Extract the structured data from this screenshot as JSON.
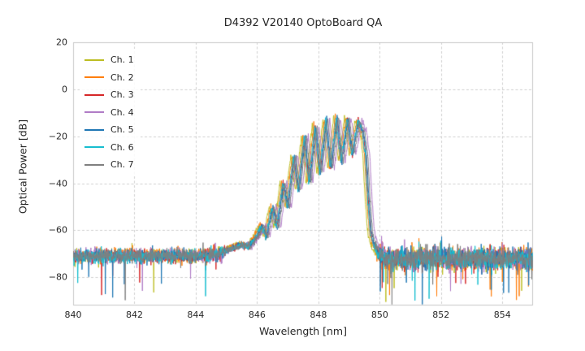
{
  "chart_data": {
    "type": "line",
    "title": "D4392 V20140 OptoBoard QA",
    "xlabel": "Wavelength [nm]",
    "ylabel": "Optical Power [dB]",
    "xlim": [
      840,
      855
    ],
    "ylim": [
      -92,
      20
    ],
    "xticks": [
      840,
      842,
      844,
      846,
      848,
      850,
      852,
      854
    ],
    "xtick_labels": [
      "840",
      "842",
      "844",
      "846",
      "848",
      "850",
      "852",
      "854"
    ],
    "yticks": [
      20,
      0,
      -20,
      -40,
      -60,
      -80
    ],
    "ytick_labels": [
      "20",
      "0",
      "−20",
      "−40",
      "−60",
      "−80"
    ],
    "grid": true,
    "grid_color": "#cfcfcf",
    "spine_color": "#c8c8c8",
    "legend_position": "upper left",
    "noise_floor_db": -71,
    "series": [
      {
        "name": "Ch. 1",
        "color": "#bcbd22",
        "x_shift": -0.1,
        "y_shift": 0.0
      },
      {
        "name": "Ch. 2",
        "color": "#ff7f0e",
        "x_shift": -0.05,
        "y_shift": 0.3
      },
      {
        "name": "Ch. 3",
        "color": "#d62728",
        "x_shift": 0.0,
        "y_shift": -0.3
      },
      {
        "name": "Ch. 4",
        "color": "#b07cc6",
        "x_shift": 0.12,
        "y_shift": 0.2
      },
      {
        "name": "Ch. 5",
        "color": "#1f77b4",
        "x_shift": 0.02,
        "y_shift": 0.0
      },
      {
        "name": "Ch. 6",
        "color": "#17becf",
        "x_shift": -0.02,
        "y_shift": -0.2
      },
      {
        "name": "Ch. 7",
        "color": "#7f7f7f",
        "x_shift": 0.06,
        "y_shift": 0.0
      }
    ],
    "envelope": [
      [
        840.0,
        -71.0
      ],
      [
        844.5,
        -70.8
      ],
      [
        844.9,
        -69.0
      ],
      [
        845.2,
        -67.5
      ],
      [
        845.5,
        -66.0
      ],
      [
        845.75,
        -66.8
      ],
      [
        846.0,
        -62.0
      ],
      [
        846.15,
        -58.0
      ],
      [
        846.3,
        -62.5
      ],
      [
        846.5,
        -50.0
      ],
      [
        846.65,
        -59.0
      ],
      [
        846.85,
        -40.0
      ],
      [
        847.0,
        -50.0
      ],
      [
        847.2,
        -28.0
      ],
      [
        847.35,
        -43.0
      ],
      [
        847.55,
        -20.0
      ],
      [
        847.7,
        -40.0
      ],
      [
        847.9,
        -15.5
      ],
      [
        848.05,
        -36.0
      ],
      [
        848.25,
        -13.0
      ],
      [
        848.4,
        -34.0
      ],
      [
        848.6,
        -12.0
      ],
      [
        848.75,
        -31.0
      ],
      [
        848.95,
        -12.5
      ],
      [
        849.1,
        -28.0
      ],
      [
        849.3,
        -13.5
      ],
      [
        849.45,
        -18.0
      ],
      [
        849.55,
        -28.0
      ],
      [
        849.62,
        -45.0
      ],
      [
        849.7,
        -60.0
      ],
      [
        849.8,
        -66.0
      ],
      [
        849.95,
        -70.0
      ],
      [
        850.15,
        -72.0
      ],
      [
        855.0,
        -72.0
      ]
    ],
    "noise": {
      "seed": 42,
      "step_nm": 0.01,
      "floor_sd_left": 1.4,
      "floor_sd_right": 2.2,
      "spike_prob_left": 0.006,
      "spike_prob_right": 0.02,
      "signal_sd": 0.7
    }
  }
}
